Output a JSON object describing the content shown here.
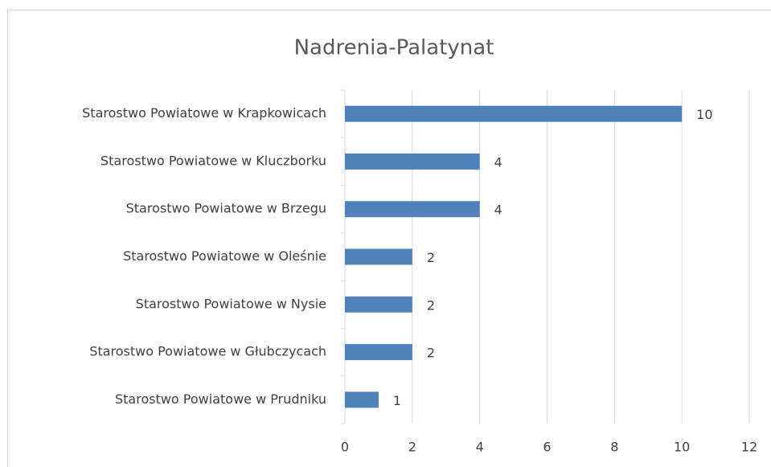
{
  "chart_data": {
    "type": "barh",
    "title": "Nadrenia-Palatynat",
    "categories": [
      "Starostwo Powiatowe w Krapkowicach",
      "Starostwo Powiatowe w Kluczborku",
      "Starostwo Powiatowe w Brzegu",
      "Starostwo Powiatowe w Oleśnie",
      "Starostwo Powiatowe w Nysie",
      "Starostwo Powiatowe w Głubczycach",
      "Starostwo Powiatowe w Prudniku"
    ],
    "values": [
      10,
      4,
      4,
      2,
      2,
      2,
      1
    ],
    "color": "#4f81bd",
    "xlim": [
      0,
      12
    ],
    "xticks": [
      0,
      2,
      4,
      6,
      8,
      10,
      12
    ],
    "grid": true
  }
}
